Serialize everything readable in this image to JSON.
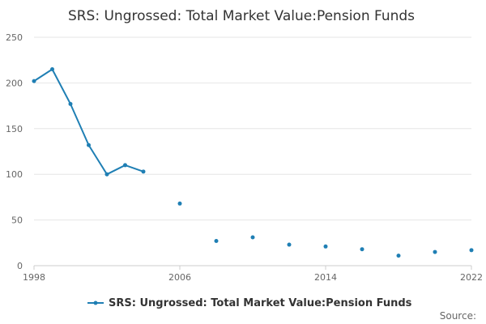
{
  "chart_data": {
    "type": "line",
    "title": "SRS: Ungrossed: Total Market Value:Pension Funds",
    "xlabel": "",
    "ylabel": "",
    "xlim": [
      1998,
      2022
    ],
    "ylim": [
      0,
      250
    ],
    "x_ticks": [
      "1998",
      "2006",
      "2014",
      "2022"
    ],
    "y_ticks": [
      "0",
      "50",
      "100",
      "150",
      "200",
      "250"
    ],
    "grid": true,
    "legend_position": "bottom",
    "series": [
      {
        "name": "SRS: Ungrossed: Total Market Value:Pension Funds",
        "color": "#1f7fb4",
        "x": [
          1998,
          1999,
          2000,
          2001,
          2002,
          2003,
          2004,
          2006,
          2008,
          2010,
          2012,
          2014,
          2016,
          2018,
          2020,
          2022
        ],
        "values": [
          202,
          215,
          177,
          132,
          100,
          110,
          103,
          68,
          27,
          31,
          23,
          21,
          18,
          11,
          15,
          17
        ]
      }
    ],
    "source_label": "Source:"
  }
}
